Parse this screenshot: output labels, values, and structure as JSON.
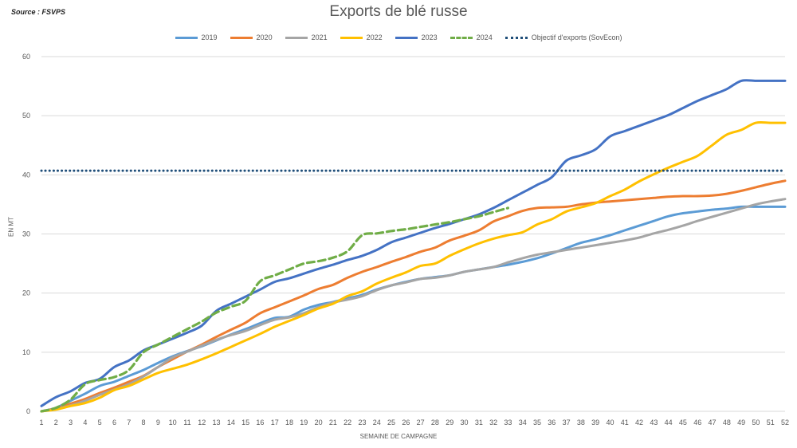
{
  "source": "Source : FSVPS",
  "chart_data": {
    "type": "line",
    "title": "Exports de blé russe",
    "xlabel": "SEMAINE DE CAMPAGNE",
    "ylabel": "EN MT",
    "ylim": [
      0,
      60
    ],
    "yticks": [
      0,
      10,
      20,
      30,
      40,
      50,
      60
    ],
    "x": [
      1,
      2,
      3,
      4,
      5,
      6,
      7,
      8,
      9,
      10,
      11,
      12,
      13,
      14,
      15,
      16,
      17,
      18,
      19,
      20,
      21,
      22,
      23,
      24,
      25,
      26,
      27,
      28,
      29,
      30,
      31,
      32,
      33,
      34,
      35,
      36,
      37,
      38,
      39,
      40,
      41,
      42,
      43,
      44,
      45,
      46,
      47,
      48,
      49,
      50,
      51,
      52
    ],
    "grid": "horizontal",
    "legend_position": "top",
    "series": [
      {
        "name": "2019",
        "color": "#5B9BD5",
        "dash": "solid",
        "values": [
          0,
          0.6,
          1.8,
          3.0,
          4.3,
          5.0,
          6.0,
          7.0,
          8.2,
          9.3,
          10.2,
          11.0,
          12.0,
          13.0,
          13.9,
          14.9,
          15.8,
          16.0,
          17.2,
          18.0,
          18.5,
          19.1,
          19.7,
          20.6,
          21.3,
          21.9,
          22.4,
          22.7,
          23.0,
          23.6,
          24.0,
          24.4,
          24.8,
          25.3,
          25.9,
          26.7,
          27.6,
          28.5,
          29.1,
          29.8,
          30.6,
          31.4,
          32.2,
          33.0,
          33.5,
          33.8,
          34.1,
          34.3,
          34.6,
          34.6,
          34.6,
          34.6
        ]
      },
      {
        "name": "2020",
        "color": "#ED7D31",
        "dash": "solid",
        "values": [
          0,
          0.5,
          1.3,
          2.1,
          3.1,
          4.0,
          5.0,
          6.0,
          7.5,
          8.8,
          10.1,
          11.3,
          12.6,
          13.8,
          15.0,
          16.6,
          17.6,
          18.6,
          19.6,
          20.7,
          21.4,
          22.6,
          23.6,
          24.4,
          25.3,
          26.1,
          27.0,
          27.7,
          28.9,
          29.7,
          30.6,
          32.1,
          33.0,
          33.9,
          34.4,
          34.5,
          34.6,
          35.0,
          35.3,
          35.5,
          35.7,
          35.9,
          36.1,
          36.3,
          36.4,
          36.4,
          36.5,
          36.8,
          37.3,
          37.9,
          38.5,
          39.0
        ]
      },
      {
        "name": "2021",
        "color": "#A5A5A5",
        "dash": "solid",
        "values": [
          0,
          0.4,
          1.0,
          1.8,
          2.8,
          3.7,
          4.6,
          5.9,
          7.5,
          9.1,
          10.1,
          11.1,
          12.1,
          12.9,
          13.6,
          14.6,
          15.5,
          15.9,
          16.6,
          17.6,
          18.4,
          18.9,
          19.5,
          20.5,
          21.3,
          21.8,
          22.4,
          22.6,
          23.0,
          23.6,
          24.0,
          24.4,
          25.2,
          25.9,
          26.5,
          26.9,
          27.3,
          27.7,
          28.1,
          28.5,
          28.9,
          29.4,
          30.1,
          30.7,
          31.4,
          32.2,
          32.9,
          33.6,
          34.3,
          35.0,
          35.5,
          35.9
        ]
      },
      {
        "name": "2022",
        "color": "#FFC000",
        "dash": "solid",
        "values": [
          0,
          0.3,
          0.9,
          1.4,
          2.3,
          3.6,
          4.3,
          5.4,
          6.5,
          7.2,
          7.9,
          8.8,
          9.8,
          10.9,
          12.0,
          13.1,
          14.3,
          15.3,
          16.3,
          17.4,
          18.2,
          19.5,
          20.3,
          21.6,
          22.6,
          23.5,
          24.6,
          25.0,
          26.3,
          27.4,
          28.4,
          29.2,
          29.8,
          30.3,
          31.6,
          32.5,
          33.8,
          34.5,
          35.2,
          36.4,
          37.5,
          38.9,
          40.1,
          41.2,
          42.2,
          43.2,
          45.0,
          46.8,
          47.6,
          48.8,
          48.8,
          48.8
        ]
      },
      {
        "name": "2023",
        "color": "#4472C4",
        "dash": "solid",
        "values": [
          0.9,
          2.4,
          3.4,
          4.8,
          5.5,
          7.5,
          8.6,
          10.3,
          11.3,
          12.3,
          13.3,
          14.5,
          17.0,
          18.2,
          19.4,
          20.6,
          21.9,
          22.5,
          23.3,
          24.1,
          24.8,
          25.6,
          26.3,
          27.3,
          28.6,
          29.4,
          30.2,
          31.0,
          31.7,
          32.5,
          33.3,
          34.4,
          35.7,
          37.0,
          38.3,
          39.6,
          42.4,
          43.3,
          44.3,
          46.5,
          47.4,
          48.3,
          49.2,
          50.1,
          51.3,
          52.5,
          53.5,
          54.5,
          55.9,
          55.9,
          55.9,
          55.9
        ]
      },
      {
        "name": "2024",
        "color": "#70AD47",
        "dash": "dashed",
        "values": [
          0,
          0.6,
          2.0,
          4.6,
          5.3,
          5.8,
          7.0,
          10.0,
          11.3,
          12.6,
          13.9,
          15.2,
          16.7,
          17.7,
          18.7,
          22.0,
          23.0,
          24.0,
          25.0,
          25.4,
          26.0,
          27.1,
          29.8,
          30.1,
          30.5,
          30.8,
          31.2,
          31.6,
          32.0,
          32.5,
          33.0,
          33.7,
          34.4,
          null,
          null,
          null,
          null,
          null,
          null,
          null,
          null,
          null,
          null,
          null,
          null,
          null,
          null,
          null,
          null,
          null,
          null,
          null
        ]
      },
      {
        "name": "Objectif d'exports (SovEcon)",
        "color": "#1F4E79",
        "dash": "dotted",
        "values": [
          40.7,
          40.7,
          40.7,
          40.7,
          40.7,
          40.7,
          40.7,
          40.7,
          40.7,
          40.7,
          40.7,
          40.7,
          40.7,
          40.7,
          40.7,
          40.7,
          40.7,
          40.7,
          40.7,
          40.7,
          40.7,
          40.7,
          40.7,
          40.7,
          40.7,
          40.7,
          40.7,
          40.7,
          40.7,
          40.7,
          40.7,
          40.7,
          40.7,
          40.7,
          40.7,
          40.7,
          40.7,
          40.7,
          40.7,
          40.7,
          40.7,
          40.7,
          40.7,
          40.7,
          40.7,
          40.7,
          40.7,
          40.7,
          40.7,
          40.7,
          40.7,
          40.7
        ]
      }
    ]
  }
}
